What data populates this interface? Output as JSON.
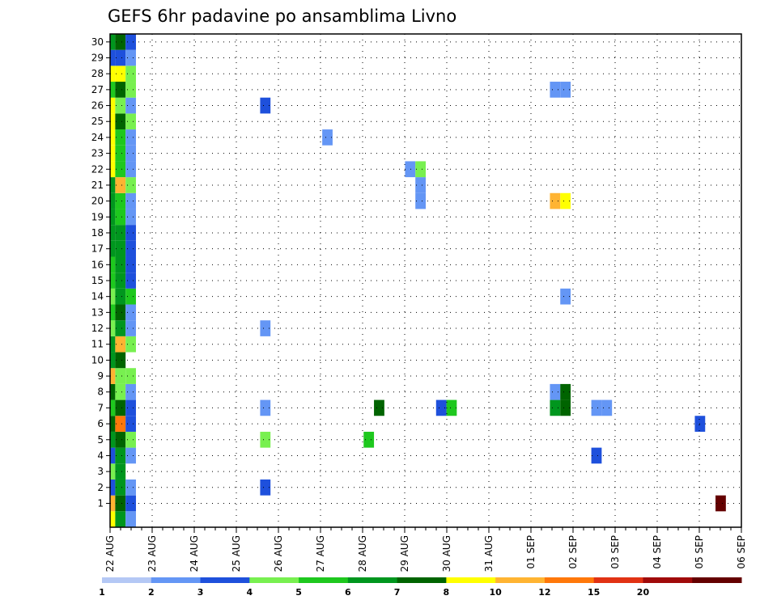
{
  "chart_data": {
    "type": "heatmap",
    "title": "GEFS 6hr padavine po ansamblima Livno",
    "xlabel": "",
    "ylabel": "",
    "y_ticks": [
      "1",
      "2",
      "3",
      "4",
      "5",
      "6",
      "7",
      "8",
      "9",
      "10",
      "11",
      "12",
      "13",
      "14",
      "15",
      "16",
      "17",
      "18",
      "19",
      "20",
      "21",
      "22",
      "23",
      "24",
      "25",
      "26",
      "27",
      "28",
      "29",
      "30"
    ],
    "x_ticks": [
      "22 AUG",
      "23 AUG",
      "24 AUG",
      "25 AUG",
      "26 AUG",
      "27 AUG",
      "28 AUG",
      "29 AUG",
      "30 AUG",
      "31 AUG",
      "01 SEP",
      "02 SEP",
      "03 SEP",
      "04 SEP",
      "05 SEP",
      "06 SEP"
    ],
    "x_range": [
      "22 AUG 00Z",
      "06 SEP 00Z"
    ],
    "time_step_hours": 6,
    "grid": "dotted",
    "legend": {
      "placement": "bottom",
      "labels": [
        "1",
        "2",
        "3",
        "4",
        "5",
        "6",
        "7",
        "8",
        "10",
        "12",
        "15",
        "20"
      ],
      "colors": [
        "#b4c8f5",
        "#6496f5",
        "#1e50dc",
        "#78f050",
        "#1ec81e",
        "#00961e",
        "#006400",
        "#ffff00",
        "#ffb432",
        "#ff780a",
        "#e13214",
        "#a00a0a",
        "#640000"
      ]
    },
    "cells": [
      [
        1,
        0,
        8
      ],
      [
        1,
        1,
        6
      ],
      [
        1,
        2,
        2
      ],
      [
        1,
        59,
        12
      ],
      [
        2,
        0,
        2
      ],
      [
        2,
        1,
        5
      ],
      [
        2,
        2,
        1
      ],
      [
        2,
        15,
        2
      ],
      [
        2,
        83,
        1
      ],
      [
        2,
        94,
        1
      ],
      [
        3,
        0,
        3
      ],
      [
        3,
        1,
        5
      ],
      [
        3,
        92,
        12
      ],
      [
        3,
        93,
        11
      ],
      [
        4,
        0,
        2
      ],
      [
        4,
        1,
        5
      ],
      [
        4,
        2,
        1
      ],
      [
        4,
        47,
        2
      ],
      [
        4,
        115,
        4
      ],
      [
        4,
        116,
        3
      ],
      [
        4,
        117,
        11
      ],
      [
        4,
        118,
        11
      ],
      [
        5,
        0,
        5
      ],
      [
        5,
        1,
        6
      ],
      [
        5,
        2,
        3
      ],
      [
        5,
        15,
        3
      ],
      [
        5,
        25,
        4
      ],
      [
        5,
        80,
        1
      ],
      [
        5,
        88,
        3
      ],
      [
        6,
        0,
        6
      ],
      [
        6,
        1,
        9
      ],
      [
        6,
        2,
        2
      ],
      [
        6,
        57,
        2
      ],
      [
        6,
        80,
        4
      ],
      [
        6,
        81,
        3
      ],
      [
        6,
        93,
        3
      ],
      [
        7,
        0,
        4
      ],
      [
        7,
        1,
        6
      ],
      [
        7,
        2,
        2
      ],
      [
        7,
        15,
        1
      ],
      [
        7,
        26,
        6
      ],
      [
        7,
        32,
        2
      ],
      [
        7,
        33,
        4
      ],
      [
        7,
        43,
        5
      ],
      [
        7,
        44,
        6
      ],
      [
        7,
        47,
        1
      ],
      [
        7,
        48,
        1
      ],
      [
        7,
        125,
        1
      ],
      [
        8,
        0,
        6
      ],
      [
        8,
        1,
        3
      ],
      [
        8,
        2,
        1
      ],
      [
        8,
        43,
        1
      ],
      [
        8,
        44,
        6
      ],
      [
        9,
        0,
        8
      ],
      [
        9,
        1,
        3
      ],
      [
        9,
        2,
        3
      ],
      [
        9,
        93,
        1
      ],
      [
        9,
        94,
        3
      ],
      [
        10,
        0,
        5
      ],
      [
        10,
        1,
        6
      ],
      [
        10,
        92,
        1
      ],
      [
        10,
        93,
        4
      ],
      [
        11,
        0,
        5
      ],
      [
        11,
        1,
        8
      ],
      [
        11,
        2,
        3
      ],
      [
        11,
        92,
        1
      ],
      [
        12,
        0,
        3
      ],
      [
        12,
        1,
        5
      ],
      [
        12,
        2,
        1
      ],
      [
        12,
        15,
        1
      ],
      [
        12,
        81,
        4
      ],
      [
        12,
        82,
        2
      ],
      [
        12,
        83,
        9
      ],
      [
        12,
        124,
        1
      ],
      [
        12,
        125,
        10
      ],
      [
        12,
        126,
        1
      ],
      [
        13,
        0,
        4
      ],
      [
        13,
        1,
        6
      ],
      [
        13,
        2,
        1
      ],
      [
        13,
        98,
        2
      ],
      [
        13,
        118,
        3
      ],
      [
        13,
        119,
        2
      ],
      [
        13,
        120,
        1
      ],
      [
        13,
        121,
        2
      ],
      [
        13,
        122,
        3
      ],
      [
        13,
        123,
        3
      ],
      [
        14,
        0,
        3
      ],
      [
        14,
        1,
        5
      ],
      [
        14,
        2,
        4
      ],
      [
        14,
        44,
        1
      ],
      [
        14,
        86,
        3
      ],
      [
        14,
        104,
        3
      ],
      [
        15,
        0,
        4
      ],
      [
        15,
        1,
        5
      ],
      [
        15,
        2,
        2
      ],
      [
        15,
        95,
        1
      ],
      [
        15,
        96,
        3
      ],
      [
        16,
        0,
        4
      ],
      [
        16,
        1,
        5
      ],
      [
        16,
        2,
        2
      ],
      [
        16,
        99,
        3
      ],
      [
        16,
        107,
        1
      ],
      [
        16,
        110,
        1
      ],
      [
        16,
        111,
        3
      ],
      [
        16,
        129,
        3
      ],
      [
        16,
        130,
        4
      ],
      [
        17,
        0,
        5
      ],
      [
        17,
        1,
        5
      ],
      [
        17,
        2,
        2
      ],
      [
        17,
        63,
        2
      ],
      [
        17,
        64,
        1
      ],
      [
        17,
        86,
        3
      ],
      [
        17,
        87,
        5
      ],
      [
        17,
        104,
        5
      ],
      [
        17,
        105,
        1
      ],
      [
        17,
        106,
        1
      ],
      [
        17,
        107,
        1
      ],
      [
        17,
        108,
        1
      ],
      [
        18,
        0,
        5
      ],
      [
        18,
        1,
        5
      ],
      [
        18,
        2,
        2
      ],
      [
        18,
        79,
        5
      ],
      [
        18,
        80,
        5
      ],
      [
        18,
        146,
        1
      ],
      [
        19,
        0,
        5
      ],
      [
        19,
        1,
        4
      ],
      [
        19,
        2,
        1
      ],
      [
        19,
        81,
        1
      ],
      [
        19,
        82,
        1
      ],
      [
        19,
        83,
        1
      ],
      [
        19,
        84,
        3
      ],
      [
        19,
        85,
        3
      ],
      [
        19,
        86,
        5
      ],
      [
        19,
        87,
        3
      ],
      [
        19,
        103,
        2
      ],
      [
        19,
        104,
        1
      ],
      [
        19,
        107,
        2
      ],
      [
        19,
        108,
        2
      ],
      [
        19,
        133,
        1
      ],
      [
        20,
        0,
        5
      ],
      [
        20,
        1,
        4
      ],
      [
        20,
        2,
        1
      ],
      [
        20,
        30,
        1
      ],
      [
        20,
        43,
        8
      ],
      [
        20,
        44,
        7
      ],
      [
        20,
        104,
        2
      ],
      [
        21,
        0,
        5
      ],
      [
        21,
        1,
        8
      ],
      [
        21,
        2,
        3
      ],
      [
        21,
        30,
        1
      ],
      [
        21,
        85,
        2
      ],
      [
        21,
        86,
        4
      ],
      [
        21,
        87,
        8
      ],
      [
        22,
        0,
        7
      ],
      [
        22,
        1,
        4
      ],
      [
        22,
        2,
        1
      ],
      [
        22,
        29,
        1
      ],
      [
        22,
        30,
        3
      ],
      [
        22,
        72,
        3
      ],
      [
        22,
        77,
        4
      ],
      [
        22,
        78,
        1
      ],
      [
        22,
        79,
        1
      ],
      [
        22,
        80,
        1
      ],
      [
        22,
        84,
        3
      ],
      [
        22,
        91,
        7
      ],
      [
        22,
        92,
        2
      ],
      [
        22,
        93,
        7
      ],
      [
        22,
        128,
        4
      ],
      [
        23,
        0,
        7
      ],
      [
        23,
        1,
        4
      ],
      [
        23,
        2,
        1
      ],
      [
        23,
        74,
        1
      ],
      [
        23,
        75,
        1
      ],
      [
        23,
        117,
        1
      ],
      [
        23,
        118,
        1
      ],
      [
        23,
        119,
        4
      ],
      [
        23,
        128,
        3
      ],
      [
        24,
        0,
        7
      ],
      [
        24,
        1,
        4
      ],
      [
        24,
        2,
        1
      ],
      [
        24,
        21,
        1
      ],
      [
        24,
        76,
        1
      ],
      [
        24,
        77,
        1
      ],
      [
        24,
        78,
        1
      ],
      [
        24,
        83,
        5
      ],
      [
        24,
        84,
        2
      ],
      [
        24,
        121,
        1
      ],
      [
        24,
        122,
        1
      ],
      [
        25,
        0,
        7
      ],
      [
        25,
        1,
        6
      ],
      [
        25,
        2,
        3
      ],
      [
        25,
        83,
        5
      ],
      [
        25,
        84,
        1
      ],
      [
        25,
        95,
        1
      ],
      [
        25,
        104,
        2
      ],
      [
        26,
        0,
        7
      ],
      [
        26,
        1,
        3
      ],
      [
        26,
        2,
        1
      ],
      [
        26,
        15,
        2
      ],
      [
        26,
        80,
        10
      ],
      [
        26,
        81,
        9
      ],
      [
        26,
        82,
        8
      ],
      [
        26,
        83,
        3
      ],
      [
        26,
        84,
        1
      ],
      [
        26,
        85,
        9
      ],
      [
        26,
        86,
        1
      ],
      [
        26,
        87,
        4
      ],
      [
        27,
        0,
        4
      ],
      [
        27,
        1,
        6
      ],
      [
        27,
        2,
        3
      ],
      [
        27,
        43,
        1
      ],
      [
        27,
        44,
        1
      ],
      [
        27,
        87,
        1
      ],
      [
        27,
        95,
        1
      ],
      [
        28,
        0,
        7
      ],
      [
        28,
        1,
        7
      ],
      [
        28,
        2,
        3
      ],
      [
        28,
        131,
        1
      ],
      [
        28,
        135,
        1
      ],
      [
        28,
        136,
        2
      ],
      [
        29,
        0,
        2
      ],
      [
        29,
        1,
        2
      ],
      [
        29,
        2,
        1
      ],
      [
        29,
        91,
        1
      ],
      [
        29,
        92,
        3
      ],
      [
        29,
        93,
        3
      ],
      [
        29,
        94,
        3
      ],
      [
        29,
        95,
        2
      ],
      [
        29,
        96,
        1
      ],
      [
        30,
        0,
        5
      ],
      [
        30,
        1,
        6
      ],
      [
        30,
        2,
        2
      ],
      [
        30,
        103,
        1
      ],
      [
        30,
        104,
        1
      ],
      [
        0,
        0,
        7
      ],
      [
        0,
        1,
        5
      ],
      [
        0,
        2,
        1
      ],
      [
        0,
        113,
        1
      ]
    ]
  }
}
